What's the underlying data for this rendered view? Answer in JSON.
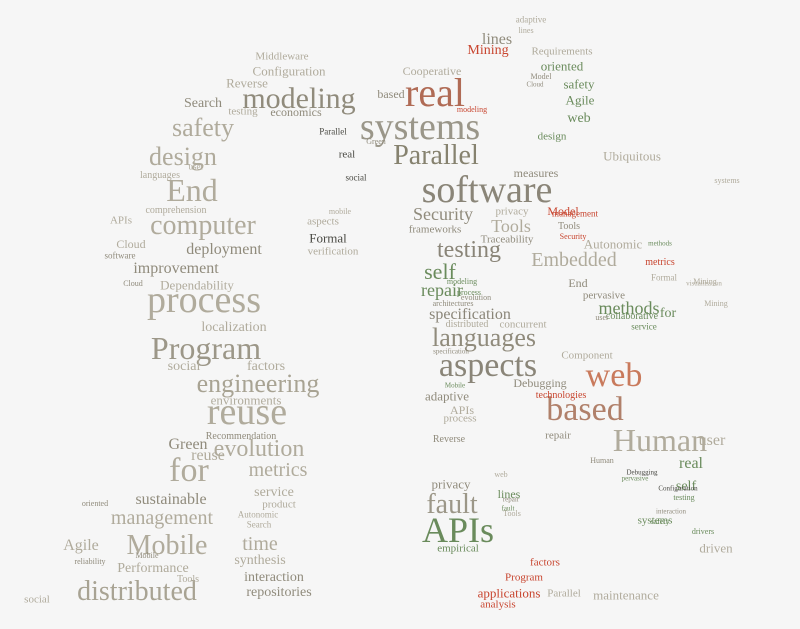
{
  "colors": {
    "background": "#f6f6f6",
    "taupe": "#b0ab9c",
    "olive": "#6a8b5c",
    "red": "#c8452f",
    "dark": "#4a4a44"
  },
  "words": [
    {
      "text": "software",
      "color": "#8a8578"
    },
    {
      "text": "real",
      "color": "#b06b55"
    },
    {
      "text": "systems",
      "color": "#9a9689"
    },
    {
      "text": "Parallel",
      "color": "#86826f"
    },
    {
      "text": "modeling",
      "color": "#908b7c"
    },
    {
      "text": "process",
      "color": "#b0ab9c"
    },
    {
      "text": "Program",
      "color": "#9c9788"
    },
    {
      "text": "reuse",
      "color": "#b0ab9c"
    },
    {
      "text": "aspects",
      "color": "#8a8578"
    },
    {
      "text": "based",
      "color": "#b0806a"
    },
    {
      "text": "Human",
      "color": "#b0ab9c"
    },
    {
      "text": "APIs",
      "color": "#6a8b5c"
    },
    {
      "text": "web",
      "color": "#c97a5c"
    },
    {
      "text": "computer",
      "color": "#b0ab9c"
    },
    {
      "text": "End",
      "color": "#b0ab9c"
    },
    {
      "text": "design",
      "color": "#b0ab9c"
    },
    {
      "text": "safety",
      "color": "#b0ab9c"
    },
    {
      "text": "engineering",
      "color": "#a8a393"
    },
    {
      "text": "for",
      "color": "#b0ab9c"
    },
    {
      "text": "evolution",
      "color": "#b0ab9c"
    },
    {
      "text": "management",
      "color": "#b0ab9c"
    },
    {
      "text": "Mobile",
      "color": "#b0ab9c"
    },
    {
      "text": "distributed",
      "color": "#a8a393"
    },
    {
      "text": "languages",
      "color": "#908b7c"
    },
    {
      "text": "fault",
      "color": "#9c9788"
    },
    {
      "text": "testing",
      "color": "#8a8578"
    },
    {
      "text": "self",
      "color": "#6a8b5c"
    },
    {
      "text": "Embedded",
      "color": "#b0ab9c"
    },
    {
      "text": "metrics",
      "color": "#b0ab9c"
    },
    {
      "text": "time",
      "color": "#b0ab9c"
    },
    {
      "text": "Security",
      "color": "#908b7c"
    },
    {
      "text": "Tools",
      "color": "#b0ab9c"
    },
    {
      "text": "repair",
      "color": "#6a8b5c"
    },
    {
      "text": "specification",
      "color": "#8a8578"
    },
    {
      "text": "methods",
      "color": "#6a8b5c"
    },
    {
      "text": "user",
      "color": "#b0ab9c"
    },
    {
      "text": "real",
      "color": "#6a8b5c"
    },
    {
      "text": "improvement",
      "color": "#908b7c"
    },
    {
      "text": "deployment",
      "color": "#908b7c"
    },
    {
      "text": "localization",
      "color": "#b0ab9c"
    },
    {
      "text": "sustainable",
      "color": "#908b7c"
    },
    {
      "text": "Green",
      "color": "#908b7c"
    },
    {
      "text": "reuse",
      "color": "#b0ab9c"
    },
    {
      "text": "Agile",
      "color": "#b0ab9c"
    },
    {
      "text": "Performance",
      "color": "#b0ab9c"
    },
    {
      "text": "interaction",
      "color": "#908b7c"
    },
    {
      "text": "repositories",
      "color": "#908b7c"
    },
    {
      "text": "synthesis",
      "color": "#b0ab9c"
    },
    {
      "text": "service",
      "color": "#b0ab9c"
    },
    {
      "text": "environments",
      "color": "#b0ab9c"
    },
    {
      "text": "Dependability",
      "color": "#b0ab9c"
    },
    {
      "text": "factors",
      "color": "#b0ab9c"
    },
    {
      "text": "social",
      "color": "#b0ab9c"
    },
    {
      "text": "Search",
      "color": "#908b7c"
    },
    {
      "text": "Configuration",
      "color": "#b0ab9c"
    },
    {
      "text": "Reverse",
      "color": "#b0ab9c"
    },
    {
      "text": "Middleware",
      "color": "#b0ab9c"
    },
    {
      "text": "economics",
      "color": "#908b7c"
    },
    {
      "text": "testing",
      "color": "#b0ab9c"
    },
    {
      "text": "Mining",
      "color": "#c8452f"
    },
    {
      "text": "lines",
      "color": "#908b7c"
    },
    {
      "text": "oriented",
      "color": "#6a8b5c"
    },
    {
      "text": "Requirements",
      "color": "#b0ab9c"
    },
    {
      "text": "Agile",
      "color": "#6a8b5c"
    },
    {
      "text": "safety",
      "color": "#6a8b5c"
    },
    {
      "text": "Cooperative",
      "color": "#b0ab9c"
    },
    {
      "text": "based",
      "color": "#908b7c"
    },
    {
      "text": "Formal",
      "color": "#4a4a44"
    },
    {
      "text": "verification",
      "color": "#b0ab9c"
    },
    {
      "text": "aspects",
      "color": "#b0ab9c"
    },
    {
      "text": "measures",
      "color": "#908b7c"
    },
    {
      "text": "Model",
      "color": "#c8452f"
    },
    {
      "text": "Autonomic",
      "color": "#b0ab9c"
    },
    {
      "text": "frameworks",
      "color": "#908b7c"
    },
    {
      "text": "Traceability",
      "color": "#908b7c"
    },
    {
      "text": "privacy",
      "color": "#b0ab9c"
    },
    {
      "text": "Ubiquitous",
      "color": "#b0ab9c"
    },
    {
      "text": "Cloud",
      "color": "#b0ab9c"
    },
    {
      "text": "concurrent",
      "color": "#b0ab9c"
    },
    {
      "text": "adaptive",
      "color": "#908b7c"
    },
    {
      "text": "APIs",
      "color": "#b0ab9c"
    },
    {
      "text": "process",
      "color": "#b0ab9c"
    },
    {
      "text": "Debugging",
      "color": "#908b7c"
    },
    {
      "text": "technologies",
      "color": "#c8452f"
    },
    {
      "text": "privacy",
      "color": "#908b7c"
    },
    {
      "text": "lines",
      "color": "#6a8b5c"
    },
    {
      "text": "empirical",
      "color": "#6a8b5c"
    },
    {
      "text": "applications",
      "color": "#c8452f"
    },
    {
      "text": "Program",
      "color": "#c8452f"
    },
    {
      "text": "analysis",
      "color": "#c8452f"
    },
    {
      "text": "factors",
      "color": "#c8452f"
    },
    {
      "text": "maintenance",
      "color": "#b0ab9c"
    },
    {
      "text": "Parallel",
      "color": "#b0ab9c"
    },
    {
      "text": "driven",
      "color": "#b0ab9c"
    },
    {
      "text": "systems",
      "color": "#6a8b5c"
    },
    {
      "text": "web",
      "color": "#6a8b5c"
    },
    {
      "text": "design",
      "color": "#6a8b5c"
    },
    {
      "text": "Component",
      "color": "#b0ab9c"
    },
    {
      "text": "End",
      "color": "#908b7c"
    },
    {
      "text": "pervasive",
      "color": "#908b7c"
    },
    {
      "text": "collaborative",
      "color": "#6a8b5c"
    },
    {
      "text": "service",
      "color": "#6a8b5c"
    },
    {
      "text": "for",
      "color": "#6a8b5c"
    },
    {
      "text": "self",
      "color": "#6a8b5c"
    },
    {
      "text": "repair",
      "color": "#908b7c"
    },
    {
      "text": "user",
      "color": "#908b7c"
    },
    {
      "text": "product",
      "color": "#b0ab9c"
    },
    {
      "text": "Autonomic",
      "color": "#b0ab9c"
    },
    {
      "text": "Search",
      "color": "#b0ab9c"
    },
    {
      "text": "Recommendation",
      "color": "#908b7c"
    },
    {
      "text": "comprehension",
      "color": "#b0ab9c"
    },
    {
      "text": "APIs",
      "color": "#b0ab9c"
    },
    {
      "text": "languages",
      "color": "#b0ab9c"
    },
    {
      "text": "user",
      "color": "#b0ab9c"
    },
    {
      "text": "adaptive",
      "color": "#b0ab9c"
    },
    {
      "text": "lines",
      "color": "#b0ab9c"
    },
    {
      "text": "oriented",
      "color": "#908b7c"
    },
    {
      "text": "reliability",
      "color": "#908b7c"
    },
    {
      "text": "social",
      "color": "#b0ab9c"
    },
    {
      "text": "Tools",
      "color": "#b0ab9c"
    },
    {
      "text": "Reverse",
      "color": "#908b7c"
    },
    {
      "text": "Human",
      "color": "#908b7c"
    },
    {
      "text": "Cloud",
      "color": "#908b7c"
    },
    {
      "text": "software",
      "color": "#908b7c"
    },
    {
      "text": "Parallel",
      "color": "#4a4a44"
    },
    {
      "text": "mobile",
      "color": "#b0ab9c"
    },
    {
      "text": "real",
      "color": "#4a4a44"
    },
    {
      "text": "social",
      "color": "#4a4a44"
    },
    {
      "text": "Mobile",
      "color": "#908b7c"
    },
    {
      "text": "Mining",
      "color": "#b0ab9c"
    },
    {
      "text": "Green",
      "color": "#908b7c"
    },
    {
      "text": "modeling",
      "color": "#c8452f"
    },
    {
      "text": "management",
      "color": "#c8452f"
    },
    {
      "text": "Model",
      "color": "#908b7c"
    },
    {
      "text": "Cloud",
      "color": "#908b7c"
    },
    {
      "text": "Tools",
      "color": "#908b7c"
    },
    {
      "text": "Security",
      "color": "#c8452f"
    },
    {
      "text": "metrics",
      "color": "#c8452f"
    },
    {
      "text": "methods",
      "color": "#6a8b5c"
    },
    {
      "text": "Formal",
      "color": "#b0ab9c"
    },
    {
      "text": "systems",
      "color": "#b0ab9c"
    },
    {
      "text": "visualization",
      "color": "#b0ab9c"
    },
    {
      "text": "Mining",
      "color": "#b0ab9c"
    },
    {
      "text": "distributed",
      "color": "#b0ab9c"
    },
    {
      "text": "evolution",
      "color": "#908b7c"
    },
    {
      "text": "architectures",
      "color": "#908b7c"
    },
    {
      "text": "interaction",
      "color": "#908b7c"
    },
    {
      "text": "safety",
      "color": "#6a8b5c"
    },
    {
      "text": "web",
      "color": "#b0ab9c"
    },
    {
      "text": "Tools",
      "color": "#b0ab9c"
    },
    {
      "text": "repair",
      "color": "#908b7c"
    },
    {
      "text": "fault",
      "color": "#6a8b5c"
    },
    {
      "text": "process",
      "color": "#6a8b5c"
    },
    {
      "text": "modeling",
      "color": "#6a8b5c"
    },
    {
      "text": "specification",
      "color": "#908b7c"
    },
    {
      "text": "Mobile",
      "color": "#6a8b5c"
    },
    {
      "text": "pervasive",
      "color": "#6a8b5c"
    },
    {
      "text": "Debugging",
      "color": "#4a4a44"
    },
    {
      "text": "Configuration",
      "color": "#4a4a44"
    },
    {
      "text": "drivers",
      "color": "#6a8b5c"
    },
    {
      "text": "testing",
      "color": "#6a8b5c"
    },
    {
      "text": "real",
      "color": "#6a8b5c"
    },
    {
      "text": "engineering",
      "color": "#b0ab9c"
    },
    {
      "text": "evolution",
      "color": "#6a8b5c"
    }
  ]
}
